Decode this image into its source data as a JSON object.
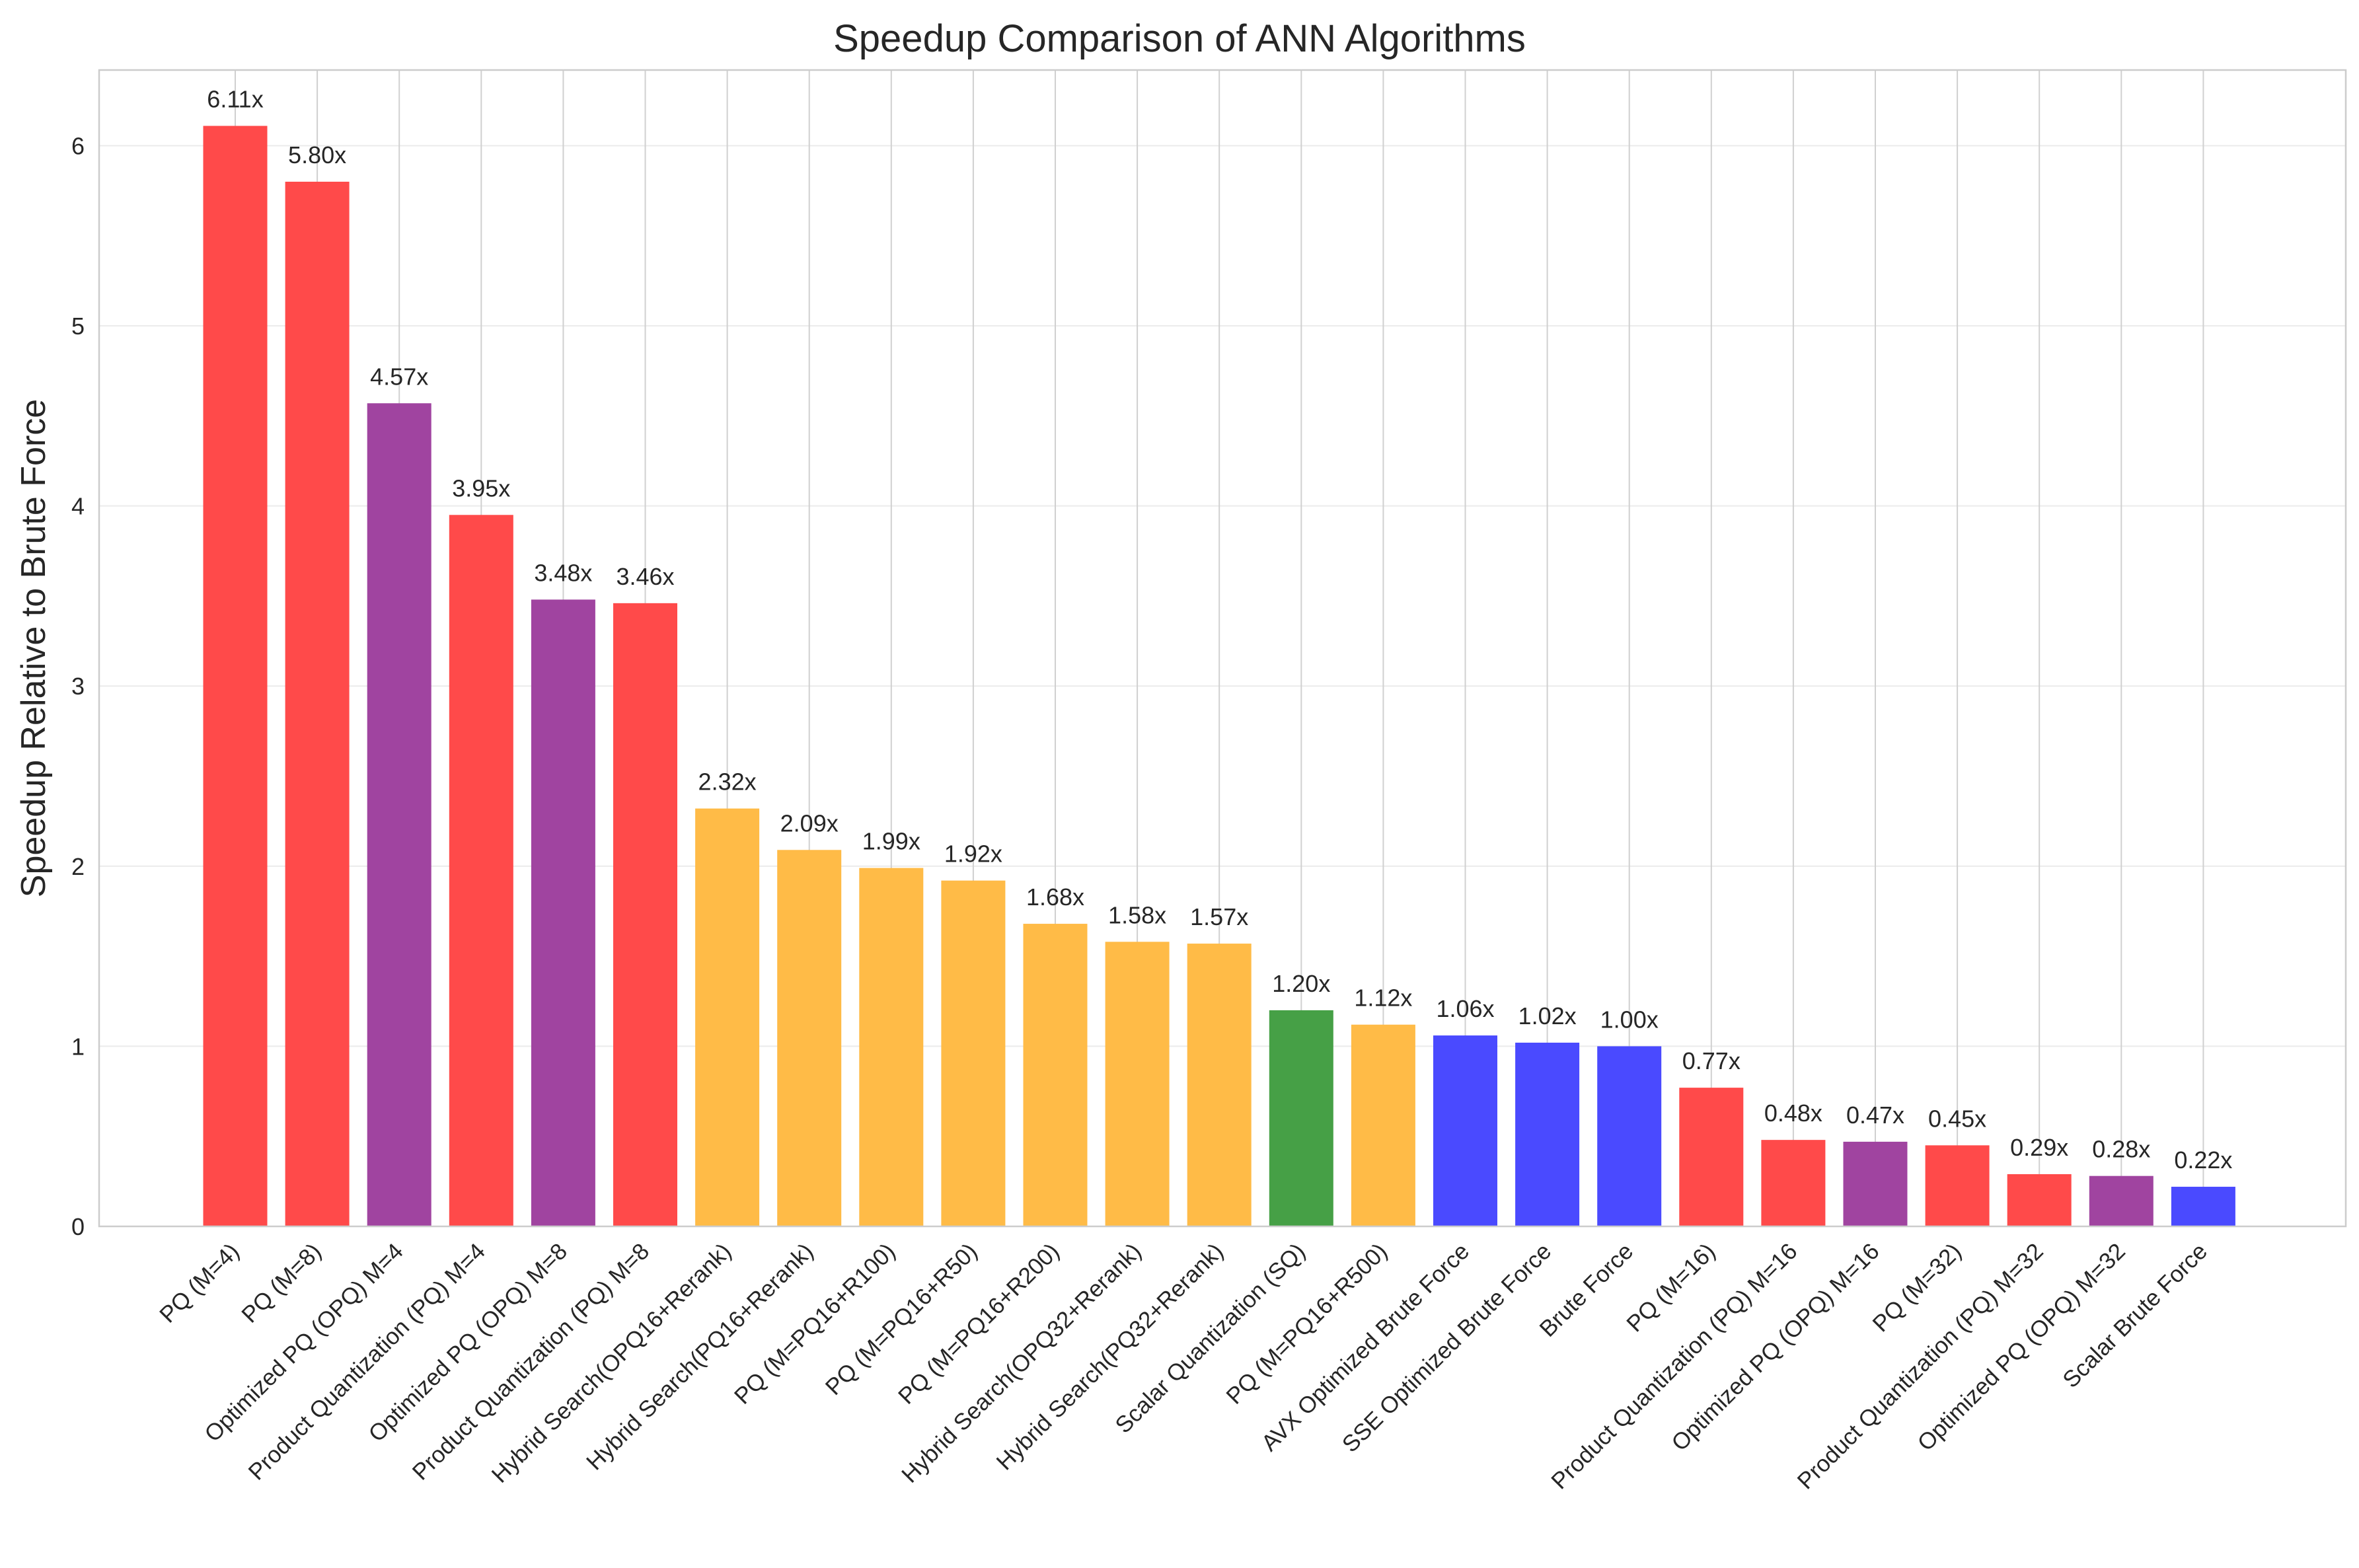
{
  "chart_data": {
    "type": "bar",
    "title": "Speedup Comparison of ANN Algorithms",
    "xlabel": "",
    "ylabel": "Speedup Relative to Brute Force",
    "ylim": [
      0,
      6.42
    ],
    "yticks": [
      "0",
      "1",
      "2",
      "3",
      "4",
      "5",
      "6"
    ],
    "grid": true,
    "legend": "none",
    "categories": [
      "PQ (M=4)",
      "PQ (M=8)",
      "Optimized PQ (OPQ) M=4",
      "Product Quantization (PQ) M=4",
      "Optimized PQ (OPQ) M=8",
      "Product Quantization (PQ) M=8",
      "Hybrid Search(OPQ16+Rerank)",
      "Hybrid Search(PQ16+Rerank)",
      "PQ (M=PQ16+R100)",
      "PQ (M=PQ16+R50)",
      "PQ (M=PQ16+R200)",
      "Hybrid Search(OPQ32+Rerank)",
      "Hybrid Search(PQ32+Rerank)",
      "Scalar Quantization (SQ)",
      "PQ (M=PQ16+R500)",
      "AVX Optimized Brute Force",
      "SSE Optimized Brute Force",
      "Brute Force",
      "PQ (M=16)",
      "Product Quantization (PQ) M=16",
      "Optimized PQ (OPQ) M=16",
      "PQ (M=32)",
      "Product Quantization (PQ) M=32",
      "Optimized PQ (OPQ) M=32",
      "Scalar Brute Force"
    ],
    "values": [
      6.11,
      5.8,
      4.57,
      3.95,
      3.48,
      3.46,
      2.32,
      2.09,
      1.99,
      1.92,
      1.68,
      1.58,
      1.57,
      1.2,
      1.12,
      1.06,
      1.02,
      1.0,
      0.77,
      0.48,
      0.47,
      0.45,
      0.29,
      0.28,
      0.22
    ],
    "value_labels": [
      "6.11x",
      "5.80x",
      "4.57x",
      "3.95x",
      "3.48x",
      "3.46x",
      "2.32x",
      "2.09x",
      "1.99x",
      "1.92x",
      "1.68x",
      "1.58x",
      "1.57x",
      "1.20x",
      "1.12x",
      "1.06x",
      "1.02x",
      "1.00x",
      "0.77x",
      "0.48x",
      "0.47x",
      "0.45x",
      "0.29x",
      "0.28x",
      "0.22x"
    ],
    "colors": [
      "#ff4a4a",
      "#ff4a4a",
      "#a044a0",
      "#ff4a4a",
      "#a044a0",
      "#ff4a4a",
      "#ffbb47",
      "#ffbb47",
      "#ffbb47",
      "#ffbb47",
      "#ffbb47",
      "#ffbb47",
      "#ffbb47",
      "#46a046",
      "#ffbb47",
      "#4a4aff",
      "#4a4aff",
      "#4a4aff",
      "#ff4a4a",
      "#ff4a4a",
      "#a044a0",
      "#ff4a4a",
      "#ff4a4a",
      "#a044a0",
      "#4a4aff"
    ]
  }
}
